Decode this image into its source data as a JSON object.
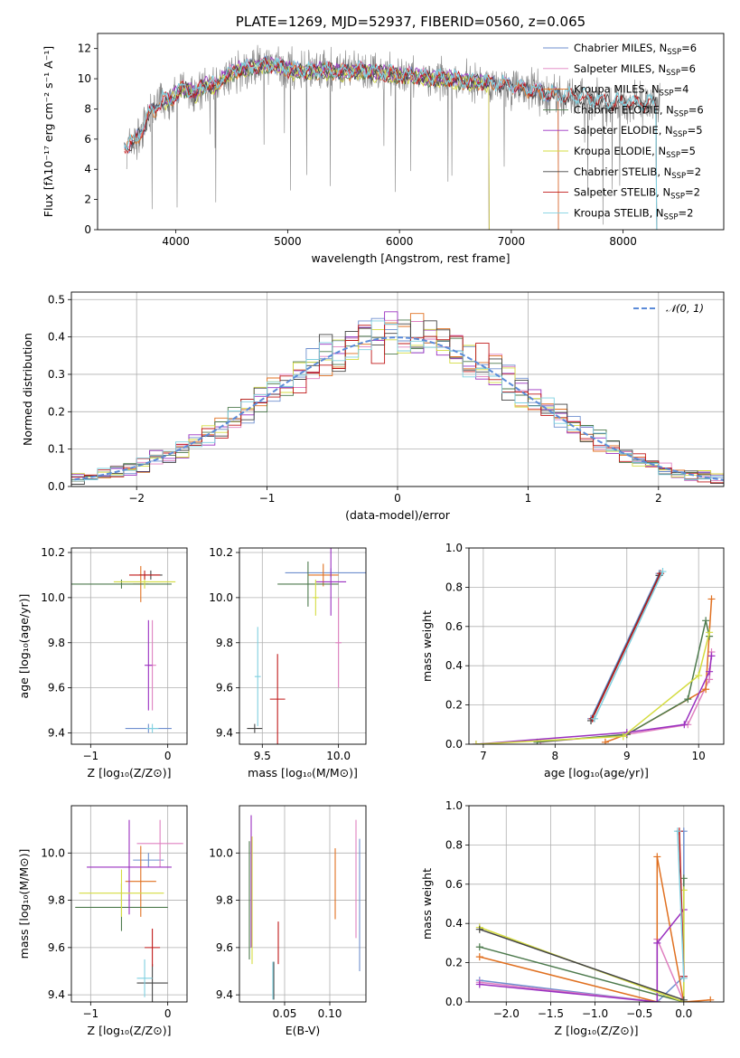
{
  "colors": [
    "#6f8fcf",
    "#df80c0",
    "#e07020",
    "#4d7a4d",
    "#9a30c0",
    "#d4dc40",
    "#444444",
    "#c01818",
    "#7fd0e0"
  ],
  "chart_data": [
    {
      "id": "spectrum",
      "type": "line",
      "title": "PLATE=1269, MJD=52937, FIBERID=0560, z=0.065",
      "xlabel": "wavelength [Angstrom, rest frame]",
      "ylabel": "Flux [fλ10⁻¹⁷ erg cm⁻² s⁻¹ A⁻¹]",
      "xlim": [
        3300,
        8900
      ],
      "ylim": [
        0,
        13
      ],
      "xticks": [
        4000,
        5000,
        6000,
        7000,
        8000
      ],
      "yticks": [
        0,
        2,
        4,
        6,
        8,
        10,
        12
      ],
      "grid": false,
      "legend_position": "upper-right",
      "observed_color": "#808080",
      "observed_points": [
        [
          3580,
          5.6
        ],
        [
          3640,
          5.9
        ],
        [
          3700,
          6.6
        ],
        [
          3760,
          7.6
        ],
        [
          3820,
          8.0
        ],
        [
          3880,
          8.6
        ],
        [
          3940,
          8.5
        ],
        [
          4000,
          8.9
        ],
        [
          4060,
          9.4
        ],
        [
          4120,
          9.2
        ],
        [
          4180,
          9.0
        ],
        [
          4240,
          9.5
        ],
        [
          4300,
          9.6
        ],
        [
          4360,
          9.4
        ],
        [
          4420,
          10.0
        ],
        [
          4480,
          10.3
        ],
        [
          4540,
          10.5
        ],
        [
          4600,
          10.6
        ],
        [
          4660,
          10.7
        ],
        [
          4720,
          10.8
        ],
        [
          4800,
          10.9
        ],
        [
          4900,
          10.8
        ],
        [
          5000,
          10.6
        ],
        [
          5100,
          10.5
        ],
        [
          5200,
          10.5
        ],
        [
          5300,
          10.5
        ],
        [
          5400,
          10.5
        ],
        [
          5500,
          10.4
        ],
        [
          5600,
          10.5
        ],
        [
          5700,
          10.5
        ],
        [
          5800,
          10.4
        ],
        [
          5900,
          10.3
        ],
        [
          6000,
          10.2
        ],
        [
          6100,
          10.2
        ],
        [
          6200,
          10.1
        ],
        [
          6300,
          10.0
        ],
        [
          6400,
          10.0
        ],
        [
          6500,
          9.9
        ],
        [
          6600,
          9.8
        ],
        [
          6700,
          9.8
        ],
        [
          6800,
          9.7
        ],
        [
          6900,
          9.6
        ],
        [
          7000,
          9.5
        ],
        [
          7100,
          9.3
        ],
        [
          7200,
          9.2
        ],
        [
          7300,
          9.0
        ],
        [
          7400,
          8.9
        ],
        [
          7500,
          8.8
        ],
        [
          7600,
          8.8
        ],
        [
          7700,
          8.6
        ],
        [
          7800,
          8.5
        ],
        [
          7900,
          8.4
        ],
        [
          8000,
          8.4
        ],
        [
          8100,
          8.3
        ],
        [
          8200,
          8.3
        ],
        [
          8300,
          8.3
        ]
      ],
      "series": [
        {
          "name": "Chabrier MILES, N_SSP=6",
          "x_range": [
            3540,
            7420
          ],
          "offset": 0.05
        },
        {
          "name": "Salpeter MILES, N_SSP=6",
          "x_range": [
            3540,
            7420
          ],
          "offset": 0.1
        },
        {
          "name": "Kroupa MILES, N_SSP=4",
          "x_range": [
            3540,
            7420
          ],
          "offset": 0.0
        },
        {
          "name": "Chabrier ELODIE, N_SSP=6",
          "x_range": [
            3900,
            6800
          ],
          "offset": -0.05
        },
        {
          "name": "Salpeter ELODIE, N_SSP=5",
          "x_range": [
            3900,
            6800
          ],
          "offset": 0.08
        },
        {
          "name": "Kroupa ELODIE, N_SSP=5",
          "x_range": [
            3900,
            6800
          ],
          "offset": -0.1
        },
        {
          "name": "Chabrier STELIB, N_SSP=2",
          "x_range": [
            3540,
            8300
          ],
          "offset": 0.0
        },
        {
          "name": "Salpeter STELIB, N_SSP=2",
          "x_range": [
            3540,
            8300
          ],
          "offset": 0.02
        },
        {
          "name": "Kroupa STELIB, N_SSP=2",
          "x_range": [
            3540,
            8300
          ],
          "offset": 0.12
        }
      ],
      "legend": [
        {
          "base": "Chabrier MILES, N",
          "sub": "SSP",
          "tail": "=6"
        },
        {
          "base": "Salpeter MILES, N",
          "sub": "SSP",
          "tail": "=6"
        },
        {
          "base": "Kroupa MILES, N",
          "sub": "SSP",
          "tail": "=4"
        },
        {
          "base": "Chabrier ELODIE, N",
          "sub": "SSP",
          "tail": "=6"
        },
        {
          "base": "Salpeter ELODIE, N",
          "sub": "SSP",
          "tail": "=5"
        },
        {
          "base": "Kroupa ELODIE, N",
          "sub": "SSP",
          "tail": "=5"
        },
        {
          "base": "Chabrier STELIB, N",
          "sub": "SSP",
          "tail": "=2"
        },
        {
          "base": "Salpeter STELIB, N",
          "sub": "SSP",
          "tail": "=2"
        },
        {
          "base": "Kroupa STELIB, N",
          "sub": "SSP",
          "tail": "=2"
        }
      ]
    },
    {
      "id": "residuals",
      "type": "histogram",
      "xlabel": "(data-model)/error",
      "ylabel": "Normed distribution",
      "xlim": [
        -2.5,
        2.5
      ],
      "ylim": [
        0,
        0.52
      ],
      "xticks": [
        -2,
        -1,
        0,
        1,
        2
      ],
      "yticks": [
        0.0,
        0.1,
        0.2,
        0.3,
        0.4,
        0.5
      ],
      "grid": true,
      "bin_width": 0.1,
      "reference_label": "𝒩(0, 1)",
      "reference_color": "#5b8bd8",
      "legend_position": "upper-right"
    },
    {
      "id": "age_vs_Z",
      "type": "errorbar",
      "xlabel": "Z [log₁₀(Z/Z⊙)]",
      "ylabel": "age  [log₁₀(age/yr)]",
      "xlim": [
        -1.25,
        0.25
      ],
      "ylim": [
        9.35,
        10.22
      ],
      "xticks": [
        -1,
        0
      ],
      "yticks": [
        9.4,
        9.6,
        9.8,
        10.0,
        10.2
      ],
      "grid": true,
      "points": [
        {
          "x": -0.25,
          "y": 9.42,
          "xerr": 0.3,
          "yerr": 0.02
        },
        {
          "x": -0.2,
          "y": 9.7,
          "xerr": 0.05,
          "yerr": 0.2
        },
        {
          "x": -0.35,
          "y": 10.06,
          "xerr": 0.1,
          "yerr": 0.08
        },
        {
          "x": -0.6,
          "y": 10.06,
          "xerr": 0.65,
          "yerr": 0.02
        },
        {
          "x": -0.25,
          "y": 9.7,
          "xerr": 0.05,
          "yerr": 0.2
        },
        {
          "x": -0.3,
          "y": 10.07,
          "xerr": 0.4,
          "yerr": 0.03
        },
        {
          "x": -0.22,
          "y": 10.1,
          "xerr": 0.15,
          "yerr": 0.02
        },
        {
          "x": -0.3,
          "y": 10.1,
          "xerr": 0.2,
          "yerr": 0.02
        },
        {
          "x": -0.2,
          "y": 9.42,
          "xerr": 0.08,
          "yerr": 0.02
        }
      ]
    },
    {
      "id": "age_vs_mass",
      "type": "errorbar",
      "xlabel": "mass [log₁₀(M/M⊙)]",
      "ylabel": "",
      "xlim": [
        9.35,
        10.18
      ],
      "ylim": [
        9.35,
        10.22
      ],
      "xticks": [
        9.5,
        10.0
      ],
      "yticks": [
        9.4,
        9.6,
        9.8,
        10.0,
        10.2
      ],
      "grid": true,
      "points": [
        {
          "x": 9.95,
          "y": 10.11,
          "xerr": 0.3,
          "yerr": 0.02
        },
        {
          "x": 10.0,
          "y": 9.8,
          "xerr": 0.02,
          "yerr": 0.2
        },
        {
          "x": 9.9,
          "y": 10.1,
          "xerr": 0.1,
          "yerr": 0.05
        },
        {
          "x": 9.8,
          "y": 10.06,
          "xerr": 0.2,
          "yerr": 0.1
        },
        {
          "x": 9.95,
          "y": 10.07,
          "xerr": 0.1,
          "yerr": 0.15
        },
        {
          "x": 9.85,
          "y": 10.0,
          "xerr": 0.02,
          "yerr": 0.08
        },
        {
          "x": 9.45,
          "y": 9.42,
          "xerr": 0.05,
          "yerr": 0.02
        },
        {
          "x": 9.6,
          "y": 9.55,
          "xerr": 0.05,
          "yerr": 0.2
        },
        {
          "x": 9.47,
          "y": 9.65,
          "xerr": 0.02,
          "yerr": 0.22
        }
      ]
    },
    {
      "id": "weight_vs_age",
      "type": "line",
      "xlabel": "age  [log₁₀(age/yr)]",
      "ylabel": "mass weight",
      "xlim": [
        6.8,
        10.35
      ],
      "ylim": [
        0,
        1.0
      ],
      "xticks": [
        7,
        8,
        9,
        10
      ],
      "yticks": [
        0.0,
        0.2,
        0.4,
        0.6,
        0.8,
        1.0
      ],
      "grid": true,
      "series": [
        {
          "x": [
            8.5,
            9.45
          ],
          "y": [
            0.13,
            0.87
          ]
        },
        {
          "x": [
            7.8,
            9.0,
            9.85,
            10.15,
            10.18
          ],
          "y": [
            0.01,
            0.05,
            0.1,
            0.33,
            0.47
          ]
        },
        {
          "x": [
            8.7,
            9.0,
            10.1,
            10.18
          ],
          "y": [
            0.01,
            0.05,
            0.28,
            0.74
          ]
        },
        {
          "x": [
            7.75,
            9.0,
            9.85,
            10.1,
            10.15
          ],
          "y": [
            0.01,
            0.05,
            0.23,
            0.63,
            0.55
          ]
        },
        {
          "x": [
            6.9,
            9.0,
            9.8,
            10.15,
            10.18
          ],
          "y": [
            0.0,
            0.06,
            0.1,
            0.37,
            0.45
          ]
        },
        {
          "x": [
            6.9,
            8.95,
            10.0,
            10.15
          ],
          "y": [
            0.0,
            0.04,
            0.35,
            0.57
          ]
        },
        {
          "x": [
            8.5,
            9.45
          ],
          "y": [
            0.12,
            0.86
          ]
        },
        {
          "x": [
            8.52,
            9.47
          ],
          "y": [
            0.13,
            0.87
          ]
        },
        {
          "x": [
            8.55,
            9.5
          ],
          "y": [
            0.13,
            0.88
          ]
        }
      ]
    },
    {
      "id": "mass_vs_Z",
      "type": "errorbar",
      "xlabel": "Z [log₁₀(Z/Z⊙)]",
      "ylabel": "mass [log₁₀(M/M⊙)]",
      "xlim": [
        -1.25,
        0.25
      ],
      "ylim": [
        9.37,
        10.2
      ],
      "xticks": [
        -1,
        0
      ],
      "yticks": [
        9.4,
        9.6,
        9.8,
        10.0
      ],
      "grid": true,
      "points": [
        {
          "x": -0.25,
          "y": 9.97,
          "xerr": 0.2,
          "yerr": 0.03
        },
        {
          "x": -0.1,
          "y": 10.04,
          "xerr": 0.3,
          "yerr": 0.1
        },
        {
          "x": -0.35,
          "y": 9.88,
          "xerr": 0.2,
          "yerr": 0.15
        },
        {
          "x": -0.6,
          "y": 9.77,
          "xerr": 0.6,
          "yerr": 0.1
        },
        {
          "x": -0.5,
          "y": 9.94,
          "xerr": 0.55,
          "yerr": 0.2
        },
        {
          "x": -0.6,
          "y": 9.83,
          "xerr": 0.55,
          "yerr": 0.1
        },
        {
          "x": -0.2,
          "y": 9.45,
          "xerr": 0.2,
          "yerr": 0.08
        },
        {
          "x": -0.2,
          "y": 9.6,
          "xerr": 0.1,
          "yerr": 0.08
        },
        {
          "x": -0.3,
          "y": 9.47,
          "xerr": 0.1,
          "yerr": 0.08
        }
      ]
    },
    {
      "id": "mass_vs_EBV",
      "type": "errorbar",
      "xlabel": "E(B-V)",
      "ylabel": "",
      "xlim": [
        0.0,
        0.14
      ],
      "ylim": [
        9.37,
        10.2
      ],
      "xticks": [
        0.05,
        0.1
      ],
      "yticks": [
        9.4,
        9.6,
        9.8,
        10.0
      ],
      "grid": true,
      "points": [
        {
          "x": 0.133,
          "y": 9.78,
          "xerr": 0,
          "yerr": 0.28
        },
        {
          "x": 0.129,
          "y": 9.89,
          "xerr": 0,
          "yerr": 0.25
        },
        {
          "x": 0.106,
          "y": 9.87,
          "xerr": 0,
          "yerr": 0.15
        },
        {
          "x": 0.011,
          "y": 9.8,
          "xerr": 0,
          "yerr": 0.25
        },
        {
          "x": 0.013,
          "y": 9.88,
          "xerr": 0,
          "yerr": 0.28
        },
        {
          "x": 0.014,
          "y": 9.8,
          "xerr": 0,
          "yerr": 0.27
        },
        {
          "x": 0.038,
          "y": 9.46,
          "xerr": 0,
          "yerr": 0.08
        },
        {
          "x": 0.043,
          "y": 9.62,
          "xerr": 0,
          "yerr": 0.09
        },
        {
          "x": 0.037,
          "y": 9.46,
          "xerr": 0,
          "yerr": 0.08
        }
      ]
    },
    {
      "id": "weight_vs_Z",
      "type": "line",
      "xlabel": "Z [log₁₀(Z/Z⊙)]",
      "ylabel": "mass weight",
      "xlim": [
        -2.42,
        0.45
      ],
      "ylim": [
        0,
        1.0
      ],
      "xticks": [
        -2.0,
        -1.5,
        -1.0,
        -0.5,
        0.0
      ],
      "yticks": [
        0.0,
        0.2,
        0.4,
        0.6,
        0.8,
        1.0
      ],
      "grid": true,
      "series": [
        {
          "x": [
            -2.3,
            -0.3,
            0.0,
            0.0
          ],
          "y": [
            0.11,
            0.0,
            0.13,
            0.87
          ]
        },
        {
          "x": [
            -2.3,
            -0.3,
            -0.3,
            0.0
          ],
          "y": [
            0.1,
            0.0,
            0.32,
            0.0
          ]
        },
        {
          "x": [
            -2.3,
            -0.3,
            -0.3,
            0.0,
            0.3
          ],
          "y": [
            0.23,
            0.0,
            0.74,
            0.0,
            0.01
          ]
        },
        {
          "x": [
            -2.3,
            0.0,
            0.0
          ],
          "y": [
            0.28,
            0.0,
            0.63
          ]
        },
        {
          "x": [
            -2.3,
            -0.3,
            -0.3,
            0.0
          ],
          "y": [
            0.09,
            0.0,
            0.3,
            0.47
          ]
        },
        {
          "x": [
            -2.3,
            0.0,
            0.0
          ],
          "y": [
            0.38,
            0.0,
            0.57
          ]
        },
        {
          "x": [
            -2.3,
            0.0
          ],
          "y": [
            0.37,
            0.01
          ]
        },
        {
          "x": [
            -0.05,
            0.0
          ],
          "y": [
            0.87,
            0.13
          ]
        },
        {
          "x": [
            -0.07,
            0.0
          ],
          "y": [
            0.87,
            0.12
          ]
        }
      ]
    }
  ]
}
